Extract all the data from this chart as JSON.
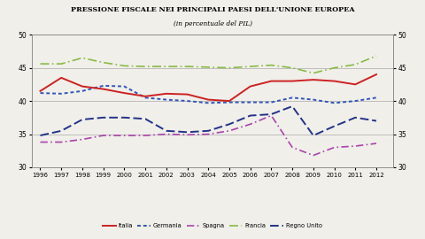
{
  "title": "PRESSIONE FISCALE NEI PRINCIPALI PAESI DELL'UNIONE EUROPEA",
  "subtitle": "(in percentuale del PIL)",
  "years": [
    1996,
    1997,
    1998,
    1999,
    2000,
    2001,
    2002,
    2003,
    2004,
    2005,
    2006,
    2007,
    2008,
    2009,
    2010,
    2011,
    2012
  ],
  "Italia": [
    41.5,
    43.5,
    42.2,
    41.8,
    41.2,
    40.7,
    41.1,
    41.0,
    40.2,
    40.0,
    42.2,
    43.0,
    43.0,
    43.2,
    43.0,
    42.5,
    44.0
  ],
  "Germania": [
    41.2,
    41.1,
    41.5,
    42.3,
    42.2,
    40.5,
    40.2,
    40.0,
    39.7,
    39.8,
    39.8,
    39.8,
    40.5,
    40.2,
    39.7,
    40.0,
    40.5
  ],
  "Spagna": [
    33.8,
    33.8,
    34.2,
    34.8,
    34.8,
    34.8,
    35.0,
    34.9,
    35.0,
    35.5,
    36.5,
    37.8,
    33.0,
    31.8,
    33.0,
    33.2,
    33.6
  ],
  "Francia": [
    45.6,
    45.6,
    46.5,
    45.8,
    45.3,
    45.2,
    45.2,
    45.2,
    45.1,
    45.0,
    45.2,
    45.4,
    45.0,
    44.2,
    45.0,
    45.5,
    46.8
  ],
  "Regno Unito": [
    34.8,
    35.5,
    37.2,
    37.5,
    37.5,
    37.3,
    35.5,
    35.3,
    35.5,
    36.5,
    37.8,
    38.0,
    39.2,
    34.8,
    36.2,
    37.5,
    37.0
  ],
  "ylim": [
    30,
    50
  ],
  "yticks": [
    30,
    35,
    40,
    45,
    50
  ],
  "color_italia": "#cc2222",
  "color_germania": "#3355bb",
  "color_spagna": "#aa44aa",
  "color_francia": "#88bb44",
  "color_regno": "#223388",
  "bg_color": "#f0efea"
}
